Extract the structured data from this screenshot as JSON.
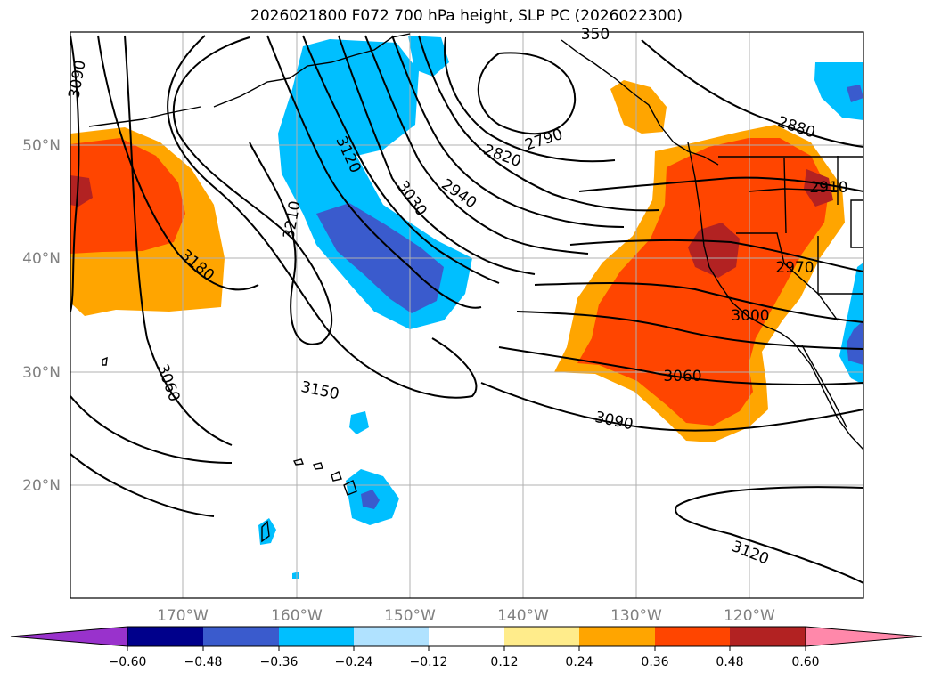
{
  "title": "2026021800 F072 700 hPa height, SLP PC (2026022300)",
  "map": {
    "extent": {
      "lon_min": -180,
      "lon_max": -110,
      "lat_min": 10,
      "lat_max": 60
    },
    "lat_labels": [
      "50°N",
      "40°N",
      "30°N",
      "20°N"
    ],
    "lon_labels": [
      "170°W",
      "160°W",
      "150°W",
      "140°W",
      "130°W",
      "120°W"
    ],
    "contour_labels": [
      "3090",
      "3180",
      "3060",
      "3210",
      "3120",
      "3030",
      "2940",
      "2820",
      "2790",
      "3150",
      "2880",
      "2910",
      "2970",
      "3000",
      "3060",
      "3090",
      "3120",
      "350"
    ],
    "gridlines": true
  },
  "colorbar": {
    "ticks": [
      "−0.60",
      "−0.48",
      "−0.36",
      "−0.24",
      "−0.12",
      "0.12",
      "0.24",
      "0.36",
      "0.48",
      "0.60"
    ],
    "colors": [
      "#9932cc",
      "#00008b",
      "#3a5bcd",
      "#00bfff",
      "#b0e2ff",
      "#ffffff",
      "#ffec8b",
      "#ffa500",
      "#ff4500",
      "#b22222",
      "#ff88aa"
    ],
    "extend": "both"
  }
}
